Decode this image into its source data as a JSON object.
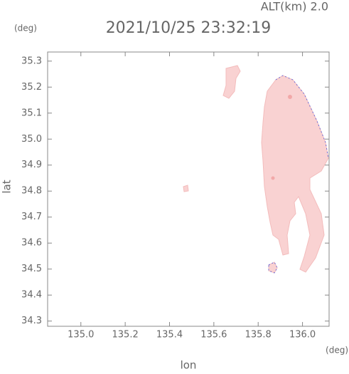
{
  "chart_data": {
    "type": "map",
    "title": "2021/10/25 23:32:19",
    "altitude_label": "ALT(km)  2.0",
    "y_unit": "(deg)",
    "x_unit": "(deg)",
    "x_label": "lon",
    "y_label": "lat",
    "xlim": [
      134.85,
      136.12
    ],
    "ylim": [
      34.28,
      35.335
    ],
    "xticks": [
      {
        "value": 135.0,
        "label": "135.0"
      },
      135.2,
      135.4,
      135.6,
      135.8,
      {
        "value": 136.0,
        "label": "136.0"
      }
    ],
    "yticks": [
      34.3,
      34.4,
      34.5,
      34.6,
      34.7,
      34.8,
      34.9,
      {
        "value": 35.0,
        "label": "35.0"
      },
      35.1,
      35.2,
      35.3
    ]
  }
}
